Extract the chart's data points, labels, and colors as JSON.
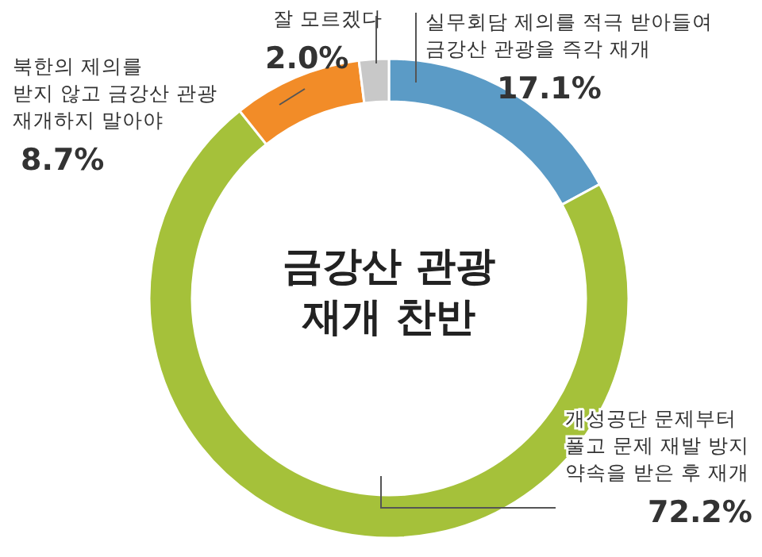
{
  "chart_data": {
    "type": "donut",
    "title": "금강산 관광\n재개 찬반",
    "categories": [
      "실무회담 제의를 적극 받아들여\n금강산 관광을 즉각 재개",
      "개성공단 문제부터\n풀고 문제 재발 방지\n약속을 받은 후 재개",
      "북한의 제의를\n받지 않고 금강산 관광\n재개하지 말아야",
      "잘 모르겠다"
    ],
    "values": [
      17.1,
      72.2,
      8.7,
      2.0
    ],
    "colors": [
      "#5b9bc6",
      "#a5c13a",
      "#f28c28",
      "#c8c8c8"
    ],
    "value_labels": [
      "17.1%",
      "72.2%",
      "8.7%",
      "2.0%"
    ]
  }
}
